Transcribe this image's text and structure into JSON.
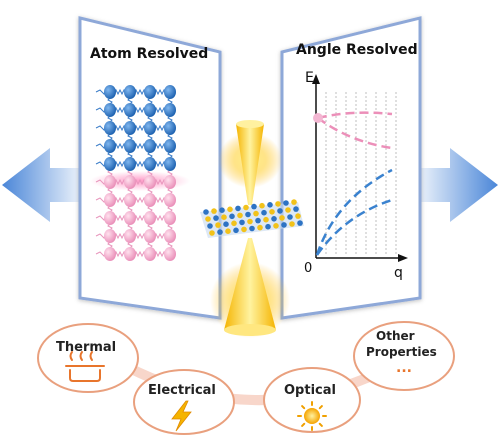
{
  "panels": {
    "left_title": "Atom Resolved",
    "right_title": "Angle Resolved"
  },
  "plot": {
    "y_axis_label": "E",
    "x_axis_label": "q",
    "origin_label": "0"
  },
  "properties": {
    "thermal": "Thermal",
    "electrical": "Electrical",
    "optical": "Optical",
    "other_line1": "Other",
    "other_line2": "Properties",
    "other_ellipsis": "..."
  },
  "colors": {
    "panel_border": "#8ea8d8",
    "arrow_blue": "#4a86d8",
    "atom_blue": "#1f6fc0",
    "atom_pink": "#f2a5c8",
    "cone_yellow": "#ffd23a",
    "accent_orange": "#e8752c"
  }
}
